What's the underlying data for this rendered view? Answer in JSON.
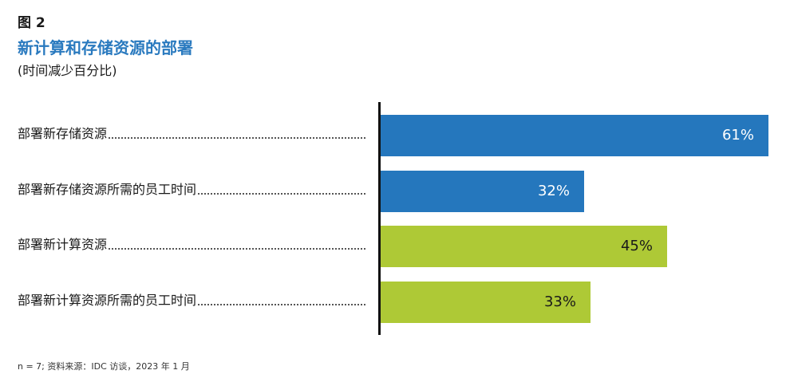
{
  "figure": {
    "label": "图 2",
    "title": "新计算和存储资源的部署",
    "subtitle": "(时间减少百分比)",
    "footnote": "n = 7; 资料来源：IDC 访谈，2023 年 1 月"
  },
  "colors": {
    "blue": "#2577bd",
    "green": "#aec936",
    "blue_text": "#ffffff",
    "green_text": "#1a1a1a"
  },
  "chart_data": {
    "type": "bar",
    "orientation": "horizontal",
    "title": "新计算和存储资源的部署",
    "subtitle": "(时间减少百分比)",
    "categories": [
      "部署新存储资源",
      "部署新存储资源所需的员工时间",
      "部署新计算资源",
      "部署新计算资源所需的员工时间"
    ],
    "values": [
      61,
      32,
      45,
      33
    ],
    "value_labels": [
      "61%",
      "32%",
      "45%",
      "33%"
    ],
    "bar_colors": [
      "blue",
      "blue",
      "green",
      "green"
    ],
    "unit": "%",
    "xlim": [
      0,
      61
    ],
    "grid": false,
    "legend": "none"
  }
}
